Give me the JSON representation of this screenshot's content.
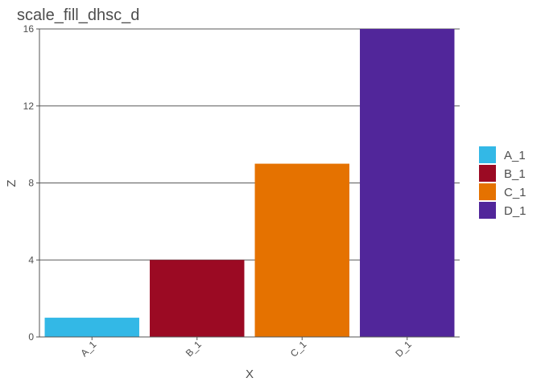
{
  "chart_data": {
    "type": "bar",
    "title": "scale_fill_dhsc_d",
    "xlabel": "X",
    "ylabel": "Z",
    "categories": [
      "A_1",
      "B_1",
      "C_1",
      "D_1"
    ],
    "values": [
      1,
      4,
      9,
      16
    ],
    "ylim": [
      0,
      16
    ],
    "yticks": [
      0,
      4,
      8,
      12,
      16
    ],
    "colors": [
      "#33B8E6",
      "#9B0A23",
      "#E57200",
      "#51269A"
    ],
    "grid": "horizontal",
    "legend": {
      "position": "right",
      "entries": [
        "A_1",
        "B_1",
        "C_1",
        "D_1"
      ]
    }
  }
}
